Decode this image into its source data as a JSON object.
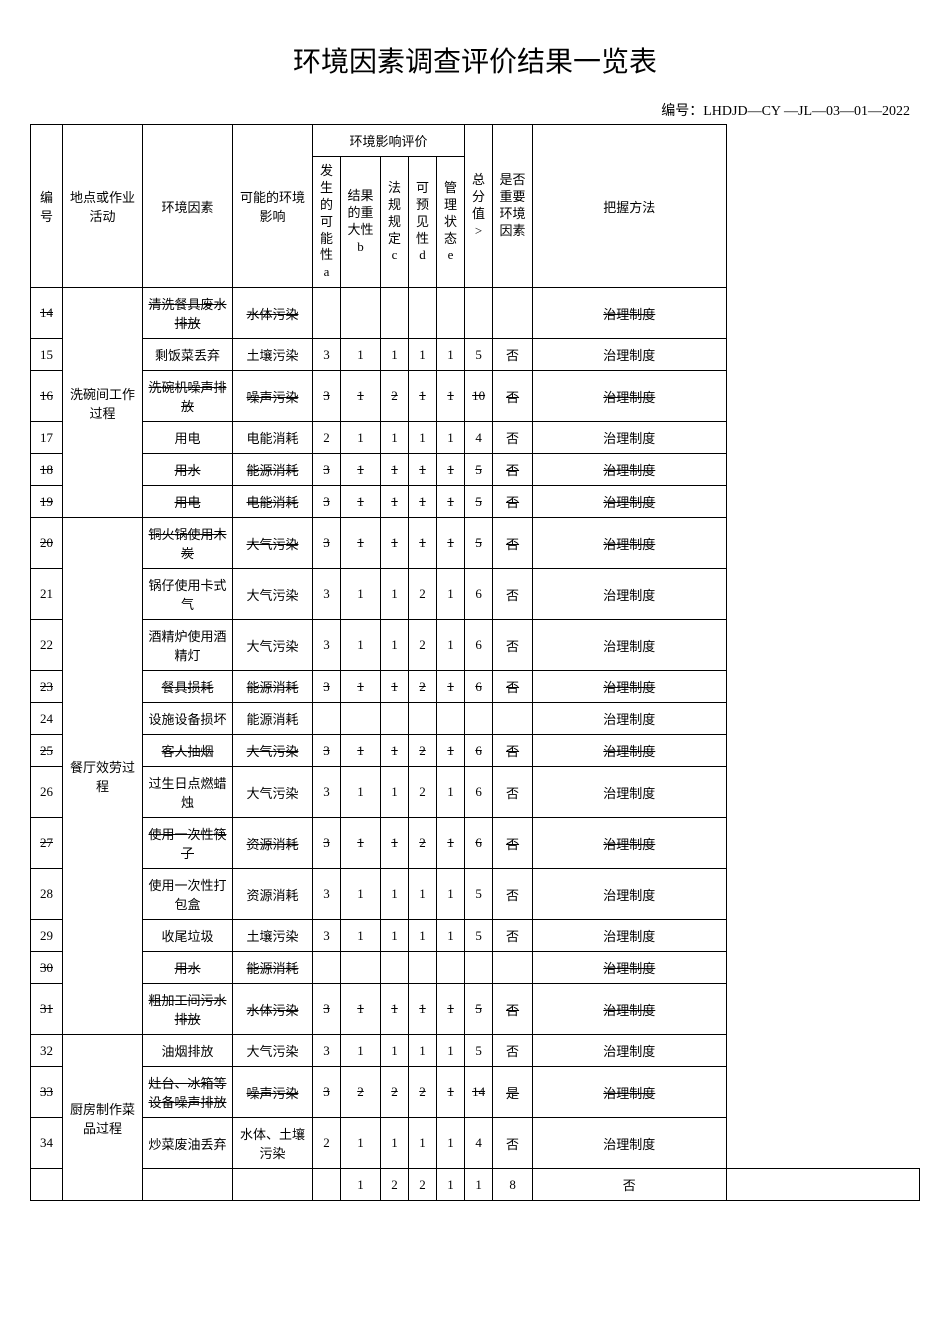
{
  "title": "环境因素调查评价结果一览表",
  "docNumber": "编号：LHDJD—CY —JL—03—01—2022",
  "headers": {
    "index": "编号",
    "location": "地点或作业活动",
    "factor": "环境因素",
    "impact": "可能的环境影响",
    "evaluationGroup": "环境影响评价",
    "a_lines": [
      "发",
      "生",
      "的",
      "可",
      "能",
      "性",
      "a"
    ],
    "b_lines": [
      "结果",
      "的重",
      "大性",
      "b"
    ],
    "c_lines": [
      "法",
      "规",
      "规",
      "定",
      "c"
    ],
    "d_lines": [
      "可",
      "预",
      "见",
      "性",
      "d"
    ],
    "e_lines": [
      "管",
      "理",
      "状",
      "态",
      "e"
    ],
    "total_lines": [
      "总",
      "分",
      "值",
      ">"
    ],
    "keyfactor_lines": [
      "是否",
      "重要",
      "环境",
      "因素"
    ],
    "method": "把握方法"
  },
  "rows": [
    {
      "idx": "14",
      "loc": "",
      "factor": "清洗餐具废水排放",
      "impact": "水体污染",
      "a": "",
      "b": "",
      "c": "",
      "d": "",
      "e": "",
      "total": "",
      "key": "",
      "method": "治理制度",
      "strike": true
    },
    {
      "idx": "15",
      "loc": "",
      "factor": "剩饭菜丢弃",
      "impact": "土壤污染",
      "a": "3",
      "b": "1",
      "c": "1",
      "d": "1",
      "e": "1",
      "total": "5",
      "key": "否",
      "method": "治理制度"
    },
    {
      "idx": "16",
      "loc": "洗碗间工作过程",
      "factor": "洗碗机噪声排放",
      "impact": "噪声污染",
      "a": "3",
      "b": "1",
      "c": "2",
      "d": "1",
      "e": "1",
      "total": "10",
      "key": "否",
      "method": "治理制度",
      "strike": true
    },
    {
      "idx": "17",
      "loc": "",
      "factor": "用电",
      "impact": "电能消耗",
      "a": "2",
      "b": "1",
      "c": "1",
      "d": "1",
      "e": "1",
      "total": "4",
      "key": "否",
      "method": "治理制度"
    },
    {
      "idx": "18",
      "loc": "",
      "factor": "用水",
      "impact": "能源消耗",
      "a": "3",
      "b": "1",
      "c": "1",
      "d": "1",
      "e": "1",
      "total": "5",
      "key": "否",
      "method": "治理制度",
      "strike": true
    },
    {
      "idx": "19",
      "loc": "",
      "factor": "用电",
      "impact": "电能消耗",
      "a": "3",
      "b": "1",
      "c": "1",
      "d": "1",
      "e": "1",
      "total": "5",
      "key": "否",
      "method": "治理制度",
      "strike": true
    },
    {
      "idx": "20",
      "loc": "",
      "factor": "铜火锅使用木炭",
      "impact": "大气污染",
      "a": "3",
      "b": "1",
      "c": "1",
      "d": "1",
      "e": "1",
      "total": "5",
      "key": "否",
      "method": "治理制度",
      "strike": true
    },
    {
      "idx": "21",
      "loc": "",
      "factor": "锅仔使用卡式气",
      "impact": "大气污染",
      "a": "3",
      "b": "1",
      "c": "1",
      "d": "2",
      "e": "1",
      "total": "6",
      "key": "否",
      "method": "治理制度"
    },
    {
      "idx": "22",
      "loc": "",
      "factor": "酒精炉使用酒精灯",
      "impact": "大气污染",
      "a": "3",
      "b": "1",
      "c": "1",
      "d": "2",
      "e": "1",
      "total": "6",
      "key": "否",
      "method": "治理制度"
    },
    {
      "idx": "23",
      "loc": "",
      "factor": "餐具损耗",
      "impact": "能源消耗",
      "a": "3",
      "b": "1",
      "c": "1",
      "d": "2",
      "e": "1",
      "total": "6",
      "key": "否",
      "method": "治理制度",
      "strike": true
    },
    {
      "idx": "24",
      "loc": "",
      "factor": "设施设备损坏",
      "impact": "能源消耗",
      "a": "",
      "b": "",
      "c": "",
      "d": "",
      "e": "",
      "total": "",
      "key": "",
      "method": "治理制度"
    },
    {
      "idx": "25",
      "loc": "餐厅效劳过程",
      "factor": "客人抽烟",
      "impact": "大气污染",
      "a": "3",
      "b": "1",
      "c": "1",
      "d": "2",
      "e": "1",
      "total": "6",
      "key": "否",
      "method": "治理制度",
      "strike": true
    },
    {
      "idx": "26",
      "loc": "",
      "factor": "过生日点燃蜡烛",
      "impact": "大气污染",
      "a": "3",
      "b": "1",
      "c": "1",
      "d": "2",
      "e": "1",
      "total": "6",
      "key": "否",
      "method": "治理制度"
    },
    {
      "idx": "27",
      "loc": "",
      "factor": "使用一次性筷子",
      "impact": "资源消耗",
      "a": "3",
      "b": "1",
      "c": "1",
      "d": "2",
      "e": "1",
      "total": "6",
      "key": "否",
      "method": "治理制度",
      "strike": true,
      "sub": {
        "a": "3",
        "b": "1",
        "c": "1",
        "d": "2",
        "e": "1",
        "total": "6",
        "key": "否",
        "method": "治理制度"
      }
    },
    {
      "idx": "28",
      "loc": "",
      "factor": "使用一次性打包盒",
      "impact": "资源消耗",
      "a": "3",
      "b": "1",
      "c": "1",
      "d": "1",
      "e": "1",
      "total": "5",
      "key": "否",
      "method": "治理制度"
    },
    {
      "idx": "29",
      "loc": "",
      "factor": "收尾垃圾",
      "impact": "土壤污染",
      "a": "3",
      "b": "1",
      "c": "1",
      "d": "1",
      "e": "1",
      "total": "5",
      "key": "否",
      "method": "治理制度"
    },
    {
      "idx": "30",
      "loc": "",
      "factor": "用水",
      "impact": "能源消耗",
      "a": "",
      "b": "",
      "c": "",
      "d": "",
      "e": "",
      "total": "",
      "key": "",
      "method": "治理制度",
      "strike": true
    },
    {
      "idx": "31",
      "loc": "",
      "factor": "粗加工间污水排放",
      "impact": "水体污染",
      "a": "3",
      "b": "1",
      "c": "1",
      "d": "1",
      "e": "1",
      "total": "5",
      "key": "否",
      "method": "治理制度",
      "strike": true,
      "sub": {
        "a": "3",
        "b": "1",
        "c": "1",
        "d": "1",
        "e": "1",
        "total": "5",
        "key": "否",
        "method": "治理制度"
      }
    },
    {
      "idx": "32",
      "loc": "",
      "factor": "油烟排放",
      "impact": "大气污染",
      "a": "3",
      "b": "1",
      "c": "1",
      "d": "1",
      "e": "1",
      "total": "5",
      "key": "否",
      "method": "治理制度"
    },
    {
      "idx": "33",
      "loc": "厨房制作菜品过程",
      "factor": "灶台、冰箱等设备噪声排放",
      "impact": "噪声污染",
      "a": "3",
      "b": "2",
      "c": "2",
      "d": "2",
      "e": "1",
      "total": "14",
      "key": "是",
      "method": "治理制度",
      "strike": true
    },
    {
      "idx": "34",
      "loc": "",
      "factor": "炒菜废油丢弃",
      "impact": "水体、土壤污染",
      "a": "2",
      "b": "1",
      "c": "1",
      "d": "1",
      "e": "1",
      "total": "4",
      "key": "否",
      "method": "治理制度"
    },
    {
      "idx": "",
      "loc": "",
      "factor": "",
      "impact": "",
      "a": "1",
      "b": "2",
      "c": "2",
      "d": "1",
      "e": "1",
      "total": "8",
      "key": "否",
      "method": ""
    }
  ]
}
